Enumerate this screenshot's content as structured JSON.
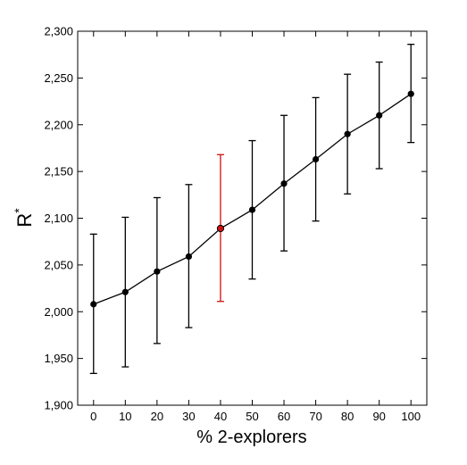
{
  "chart_data": {
    "type": "line",
    "xlabel": "% 2-explorers",
    "ylabel": "R",
    "ylabel_superscript": "*",
    "xlim": [
      -5,
      105
    ],
    "ylim": [
      1900,
      2300
    ],
    "x_ticks": [
      0,
      10,
      20,
      30,
      40,
      50,
      60,
      70,
      80,
      90,
      100
    ],
    "x_tick_labels": [
      "0",
      "10",
      "20",
      "30",
      "40",
      "50",
      "60",
      "70",
      "80",
      "90",
      "100"
    ],
    "y_ticks": [
      1900,
      1950,
      2000,
      2050,
      2100,
      2150,
      2200,
      2250,
      2300
    ],
    "y_tick_labels": [
      "1,900",
      "1,950",
      "2,000",
      "2,050",
      "2,100",
      "2,150",
      "2,200",
      "2,250",
      "2,300"
    ],
    "grid": false,
    "legend": "none",
    "series": [
      {
        "x": [
          0,
          10,
          20,
          30,
          40,
          50,
          60,
          70,
          80,
          90,
          100
        ],
        "y": [
          2008,
          2021,
          2043,
          2059,
          2089,
          2109,
          2137,
          2163,
          2190,
          2210,
          2233
        ],
        "err_low": [
          1934,
          1941,
          1966,
          1983,
          2011,
          2035,
          2065,
          2097,
          2126,
          2153,
          2181
        ],
        "err_high": [
          2083,
          2101,
          2122,
          2136,
          2168,
          2183,
          2210,
          2229,
          2254,
          2267,
          2286
        ],
        "color": "#000000"
      }
    ],
    "highlight": {
      "x": 40,
      "color": "#d01010"
    }
  }
}
